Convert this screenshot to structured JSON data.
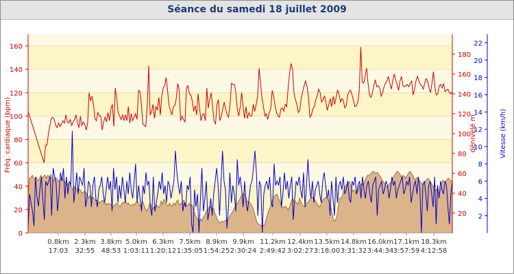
{
  "chart_data": {
    "title": "Séance du samedi 18 juillet 2009",
    "type": "line",
    "x_ticks": [
      {
        "distance": "0.8km",
        "time": "17:03"
      },
      {
        "distance": "2.3km",
        "time": "32:55"
      },
      {
        "distance": "3.8km",
        "time": "48:53"
      },
      {
        "distance": "5.0km",
        "time": "1:03:11"
      },
      {
        "distance": "6.3km",
        "time": "1:20:12"
      },
      {
        "distance": "7.5km",
        "time": "1:35:05"
      },
      {
        "distance": "8.9km",
        "time": "1:54:25"
      },
      {
        "distance": "9.9km",
        "time": "2:30:24"
      },
      {
        "distance": "11.2km",
        "time": "2:49:42"
      },
      {
        "distance": "12.4km",
        "time": "3:02:27"
      },
      {
        "distance": "13.5km",
        "time": "3:18:00"
      },
      {
        "distance": "14.8km",
        "time": "3:31:32"
      },
      {
        "distance": "16.0km",
        "time": "3:44:34"
      },
      {
        "distance": "17.1km",
        "time": "3:57:59"
      },
      {
        "distance": "18.3km",
        "time": "4:12:58"
      }
    ],
    "axes": {
      "heart_rate": {
        "label": "Fréq. cardiaque (bpm)",
        "range": [
          0,
          170
        ],
        "ticks": [
          0,
          20,
          40,
          60,
          80,
          100,
          120,
          140,
          160
        ]
      },
      "elevation": {
        "label": "dénivelé m",
        "range": [
          0,
          200
        ],
        "ticks": [
          20,
          40,
          60,
          80,
          100,
          120,
          140,
          160,
          180
        ]
      },
      "speed": {
        "label": "Vitesse (km/h)",
        "range": [
          0,
          23
        ],
        "ticks": [
          2,
          4,
          6,
          8,
          10,
          12,
          14,
          16,
          18,
          20,
          22
        ]
      }
    },
    "series": [
      {
        "name": "Fréq. cardiaque (bpm)",
        "color": "#cc0000",
        "values": [
          104,
          100,
          96,
          92,
          88,
          84,
          80,
          76,
          72,
          68,
          64,
          60,
          75,
          75,
          85,
          92,
          98,
          99,
          97,
          92,
          90,
          94,
          91,
          93,
          96,
          94,
          101,
          95,
          94,
          97,
          92,
          95,
          97,
          101,
          94,
          90,
          100,
          92,
          95,
          93,
          88,
          94,
          120,
          113,
          117,
          110,
          98,
          96,
          103,
          100,
          100,
          88,
          95,
          99,
          95,
          103,
          96,
          106,
          110,
          91,
          124,
          115,
          103,
          100,
          97,
          101,
          96,
          101,
          96,
          108,
          94,
          102,
          96,
          99,
          102,
          97,
          122,
          121,
          110,
          93,
          92,
          91,
          109,
          143,
          101,
          104,
          110,
          98,
          108,
          105,
          116,
          101,
          117,
          124,
          126,
          133,
          122,
          109,
          105,
          101,
          108,
          109,
          115,
          128,
          122,
          96,
          100,
          97,
          95,
          124,
          126,
          119,
          118,
          113,
          104,
          109,
          101,
          119,
          107,
          96,
          101,
          102,
          96,
          124,
          107,
          114,
          120,
          108,
          96,
          93,
          110,
          114,
          96,
          100,
          106,
          112,
          106,
          101,
          99,
          110,
          128,
          127,
          127,
          120,
          106,
          100,
          108,
          120,
          108,
          98,
          108,
          98,
          103,
          100,
          100,
          110,
          104,
          110,
          117,
          141,
          128,
          115,
          108,
          100,
          102,
          97,
          103,
          106,
          122,
          117,
          109,
          103,
          100,
          99,
          106,
          107,
          104,
          110,
          108,
          124,
          137,
          145,
          140,
          120,
          114,
          110,
          103,
          105,
          115,
          121,
          126,
          130,
          125,
          116,
          99,
          101,
          106,
          108,
          114,
          117,
          123,
          120,
          112,
          114,
          117,
          112,
          105,
          110,
          115,
          108,
          117,
          110,
          116,
          122,
          119,
          112,
          115,
          113,
          107,
          109,
          118,
          121,
          122,
          118,
          113,
          108,
          109,
          112,
          123,
          159,
          129,
          128,
          134,
          141,
          128,
          118,
          116,
          120,
          126,
          131,
          125,
          126,
          124,
          117,
          120,
          125,
          128,
          130,
          134,
          128,
          123,
          130,
          136,
          131,
          127,
          122,
          130,
          134,
          126,
          125,
          126,
          127,
          125,
          128,
          130,
          118,
          123,
          130,
          134,
          130,
          127,
          126,
          123,
          128,
          132,
          130,
          124,
          120,
          128,
          138,
          125,
          118,
          119,
          126,
          127,
          124,
          128,
          121,
          122,
          123,
          120,
          119,
          121
        ]
      },
      {
        "name": "dénivelé m",
        "color": "#cc9966",
        "values": [
          38,
          55,
          56,
          58,
          55,
          54,
          56,
          52,
          55,
          58,
          55,
          57,
          58,
          55,
          58,
          56,
          59,
          55,
          52,
          56,
          55,
          53,
          52,
          54,
          56,
          53,
          52,
          48,
          50,
          47,
          48,
          45,
          43,
          47,
          45,
          42,
          44,
          43,
          40,
          41,
          42,
          40,
          38,
          35,
          38,
          34,
          36,
          34,
          32,
          33,
          30,
          31,
          32,
          33,
          29,
          30,
          28,
          30,
          29,
          28,
          26,
          28,
          29,
          30,
          28,
          26,
          29,
          31,
          30,
          32,
          29,
          30,
          28,
          27,
          29,
          28,
          30,
          32,
          30,
          27,
          28,
          32,
          28,
          24,
          22,
          25,
          30,
          28,
          24,
          26,
          25,
          28,
          26,
          26,
          32,
          29,
          34,
          31,
          28,
          27,
          30,
          28,
          27,
          30,
          28,
          32,
          33,
          28,
          29,
          31,
          33,
          30,
          27,
          28,
          30,
          27,
          28,
          24,
          18,
          16,
          13,
          11,
          14,
          12,
          16,
          18,
          22,
          23,
          26,
          27,
          22,
          25,
          20,
          17,
          13,
          11,
          10,
          12,
          11,
          12,
          13,
          12,
          15,
          18,
          20,
          22,
          25,
          28,
          30,
          32,
          35,
          38,
          40,
          39,
          36,
          31,
          32,
          30,
          28,
          25,
          20,
          15,
          10,
          9,
          8,
          7,
          8,
          7,
          12,
          17,
          22,
          25,
          30,
          34,
          37,
          38,
          39,
          35,
          32,
          28,
          25,
          26,
          27,
          25,
          23,
          27,
          31,
          35,
          32,
          32,
          30,
          29,
          35,
          31,
          28,
          27,
          26,
          30,
          31,
          33,
          35,
          36,
          34,
          33,
          30,
          28,
          26,
          28,
          32,
          34,
          35,
          36,
          34,
          30,
          26,
          20,
          13,
          12,
          15,
          22,
          34,
          35,
          36,
          42,
          46,
          48,
          50,
          52,
          49,
          44,
          42,
          43,
          39,
          41,
          47,
          48,
          50,
          48,
          52,
          55,
          58,
          58,
          59,
          61,
          62,
          61,
          60,
          61,
          59,
          57,
          54,
          52,
          50,
          47,
          46,
          48,
          50,
          52,
          55,
          58,
          60,
          62,
          61,
          59,
          56,
          58,
          57,
          55,
          58,
          60,
          62,
          60,
          58,
          55,
          53,
          56,
          54,
          52,
          50,
          49,
          51,
          52,
          54,
          55,
          53,
          50,
          48,
          44,
          42,
          44,
          41,
          40,
          45,
          53,
          52,
          51,
          53,
          55,
          54,
          52,
          53
        ]
      },
      {
        "name": "Vitesse (km/h)",
        "color": "#0000cc",
        "values": [
          0.5,
          4.5,
          3.5,
          2.5,
          0.8,
          6.5,
          4.2,
          3.1,
          5.0,
          6.5,
          4.0,
          1.5,
          6.0,
          5.5,
          6.0,
          6.5,
          2.0,
          7.5,
          6.5,
          5.8,
          2.5,
          4.5,
          7.0,
          6.0,
          7.5,
          4.0,
          6.5,
          4.5,
          6.0,
          5.5,
          11.8,
          3.5,
          5.0,
          7.0,
          4.5,
          6.5,
          6.0,
          5.5,
          7.5,
          3.0,
          4.0,
          6.0,
          5.5,
          3.0,
          5.5,
          6.5,
          4.0,
          3.0,
          5.0,
          5.5,
          6.5,
          4.5,
          3.5,
          5.0,
          6.5,
          5.0,
          6.0,
          2.5,
          7.5,
          5.0,
          6.5,
          3.5,
          5.5,
          4.0,
          6.5,
          5.0,
          3.5,
          6.0,
          4.5,
          7.0,
          5.0,
          4.0,
          6.0,
          8.0,
          3.5,
          5.5,
          4.0,
          2.5,
          5.5,
          4.5,
          7.0,
          5.5,
          6.0,
          3.0,
          2.0,
          6.5,
          2.5,
          3.5,
          4.5,
          6.0,
          5.0,
          7.0,
          4.5,
          5.5,
          3.5,
          6.0,
          5.5,
          4.0,
          5.0,
          6.0,
          9.5,
          7.0,
          5.5,
          4.5,
          6.0,
          2.5,
          3.5,
          3.0,
          5.5,
          5.0,
          6.5,
          1.0,
          0.0,
          5.0,
          3.0,
          4.5,
          0.0,
          4.0,
          7.5,
          2.5,
          4.0,
          6.0,
          1.5,
          2.5,
          4.0,
          2.0,
          4.5,
          6.0,
          7.5,
          5.5,
          2.0,
          6.0,
          9.5,
          6.0,
          5.0,
          0.5,
          3.0,
          7.0,
          3.5,
          5.5,
          4.5,
          2.5,
          8.5,
          5.5,
          6.5,
          5.0,
          3.0,
          6.0,
          3.5,
          2.5,
          4.0,
          5.5,
          6.0,
          7.5,
          9.5,
          7.0,
          2.0,
          6.0,
          5.5,
          0.0,
          4.5,
          5.5,
          6.0,
          5.0,
          6.5,
          3.5,
          3.0,
          8.0,
          5.5,
          6.0,
          5.5,
          6.5,
          3.0,
          4.5,
          7.0,
          5.0,
          6.0,
          4.0,
          5.5,
          6.5,
          1.5,
          4.0,
          6.0,
          5.5,
          6.5,
          5.0,
          4.0,
          7.0,
          3.0,
          5.5,
          8.5,
          5.5,
          4.0,
          6.0,
          3.5,
          5.0,
          5.5,
          6.0,
          4.5,
          3.5,
          6.0,
          7.0,
          5.5,
          4.0,
          5.0,
          2.0,
          6.0,
          4.0,
          2.0,
          6.5,
          3.5,
          5.5,
          6.0,
          5.0,
          6.5,
          4.5,
          5.0,
          6.0,
          4.0,
          3.5,
          6.0,
          5.5,
          6.5,
          4.5,
          5.5,
          6.0,
          4.0,
          6.5,
          5.0,
          4.0,
          5.5,
          6.0,
          4.5,
          3.5,
          5.5,
          6.0,
          6.5,
          2.0,
          5.0,
          5.5,
          6.0,
          4.5,
          5.0,
          6.0,
          5.5,
          4.0,
          5.0,
          6.5,
          5.5,
          6.0,
          4.0,
          5.0,
          5.5,
          6.0,
          6.5,
          4.5,
          5.0,
          6.0,
          5.5,
          6.5,
          3.5,
          4.5,
          5.5,
          6.0,
          4.5,
          6.5,
          5.0,
          0.0,
          5.5,
          6.0,
          4.5,
          2.5,
          5.5,
          6.0,
          4.5,
          3.0,
          6.5,
          1.0,
          5.5,
          4.0,
          6.0,
          5.0,
          4.5,
          6.0,
          5.5,
          3.0,
          1.0,
          4.5,
          6.0
        ]
      }
    ]
  }
}
